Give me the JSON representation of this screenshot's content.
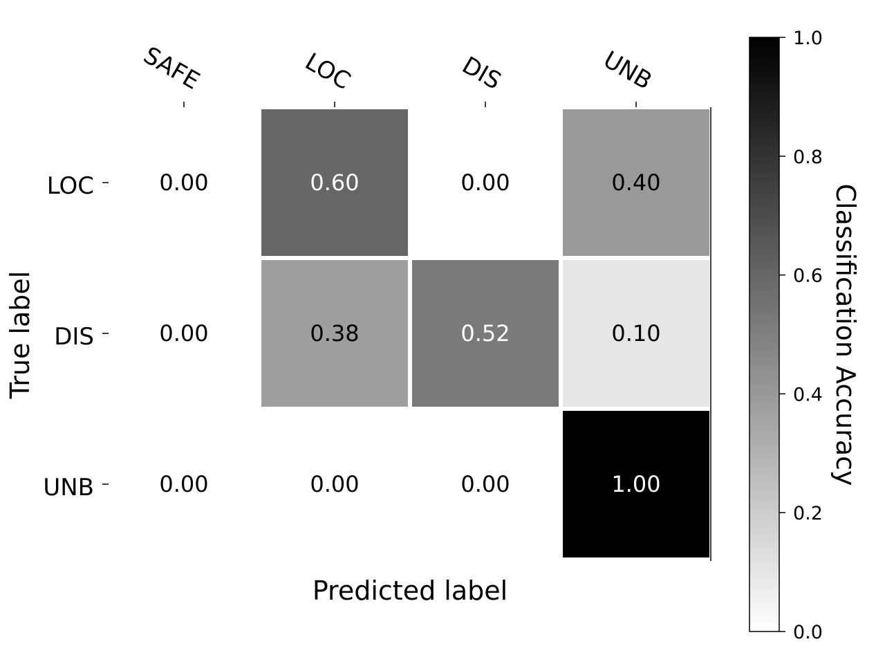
{
  "chart_data": {
    "type": "heatmap",
    "title": "",
    "x_categories": [
      "SAFE",
      "LOC",
      "DIS",
      "UNB"
    ],
    "y_categories": [
      "LOC",
      "DIS",
      "UNB"
    ],
    "values": [
      [
        0.0,
        0.6,
        0.0,
        0.4
      ],
      [
        0.0,
        0.38,
        0.52,
        0.1
      ],
      [
        0.0,
        0.0,
        0.0,
        1.0
      ]
    ],
    "cell_labels": [
      [
        "0.00",
        "0.60",
        "0.00",
        "0.40"
      ],
      [
        "0.00",
        "0.38",
        "0.52",
        "0.10"
      ],
      [
        "0.00",
        "0.00",
        "0.00",
        "1.00"
      ]
    ],
    "xlabel": "Predicted label",
    "ylabel": "True label",
    "colorbar": {
      "label": "Classification Accuracy",
      "range": [
        0.0,
        1.0
      ],
      "ticks": [
        0.0,
        0.2,
        0.4,
        0.6,
        0.8,
        1.0
      ],
      "tick_labels": [
        "0.0",
        "0.2",
        "0.4",
        "0.6",
        "0.8",
        "1.0"
      ],
      "colormap": "greys",
      "low_color": "#ffffff",
      "high_color": "#000000"
    },
    "x_tick_position": "top",
    "zero_cells_drawn": false
  }
}
